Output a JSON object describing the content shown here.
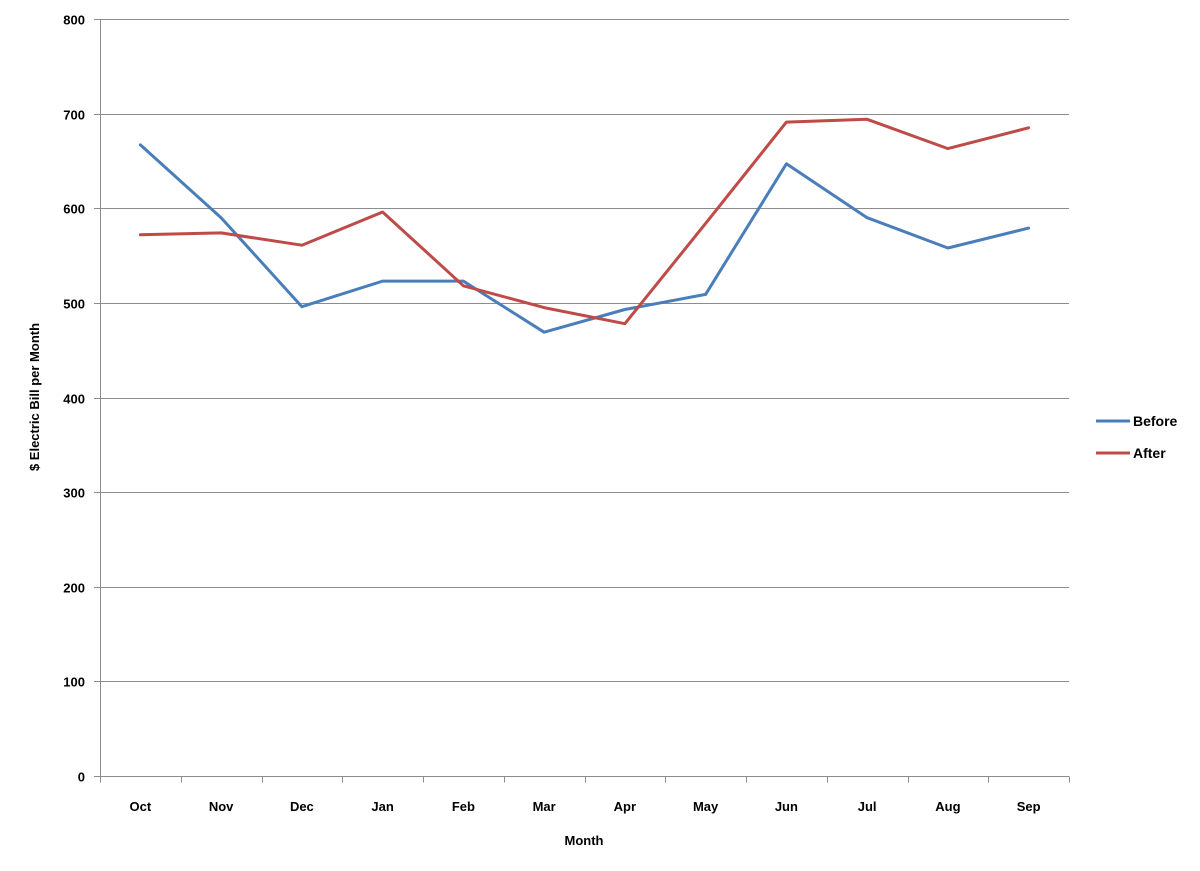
{
  "chart_data": {
    "type": "line",
    "title": "",
    "xlabel": "Month",
    "ylabel": "$ Electric Bill per Month",
    "categories": [
      "Oct",
      "Nov",
      "Dec",
      "Jan",
      "Feb",
      "Mar",
      "Apr",
      "May",
      "Jun",
      "Jul",
      "Aug",
      "Sep"
    ],
    "ylim": [
      0,
      800
    ],
    "yticks": [
      "0",
      "100",
      "200",
      "300",
      "400",
      "500",
      "600",
      "700",
      "800"
    ],
    "grid": true,
    "legend_position": "right",
    "series": [
      {
        "name": "Before",
        "color": "#4a7ebb",
        "values": [
          667,
          590,
          496,
          523,
          523,
          469,
          493,
          509,
          647,
          590,
          558,
          579
        ]
      },
      {
        "name": "After",
        "color": "#be4b48",
        "values": [
          572,
          574,
          561,
          596,
          518,
          495,
          478,
          584,
          691,
          694,
          663,
          685
        ]
      }
    ]
  }
}
